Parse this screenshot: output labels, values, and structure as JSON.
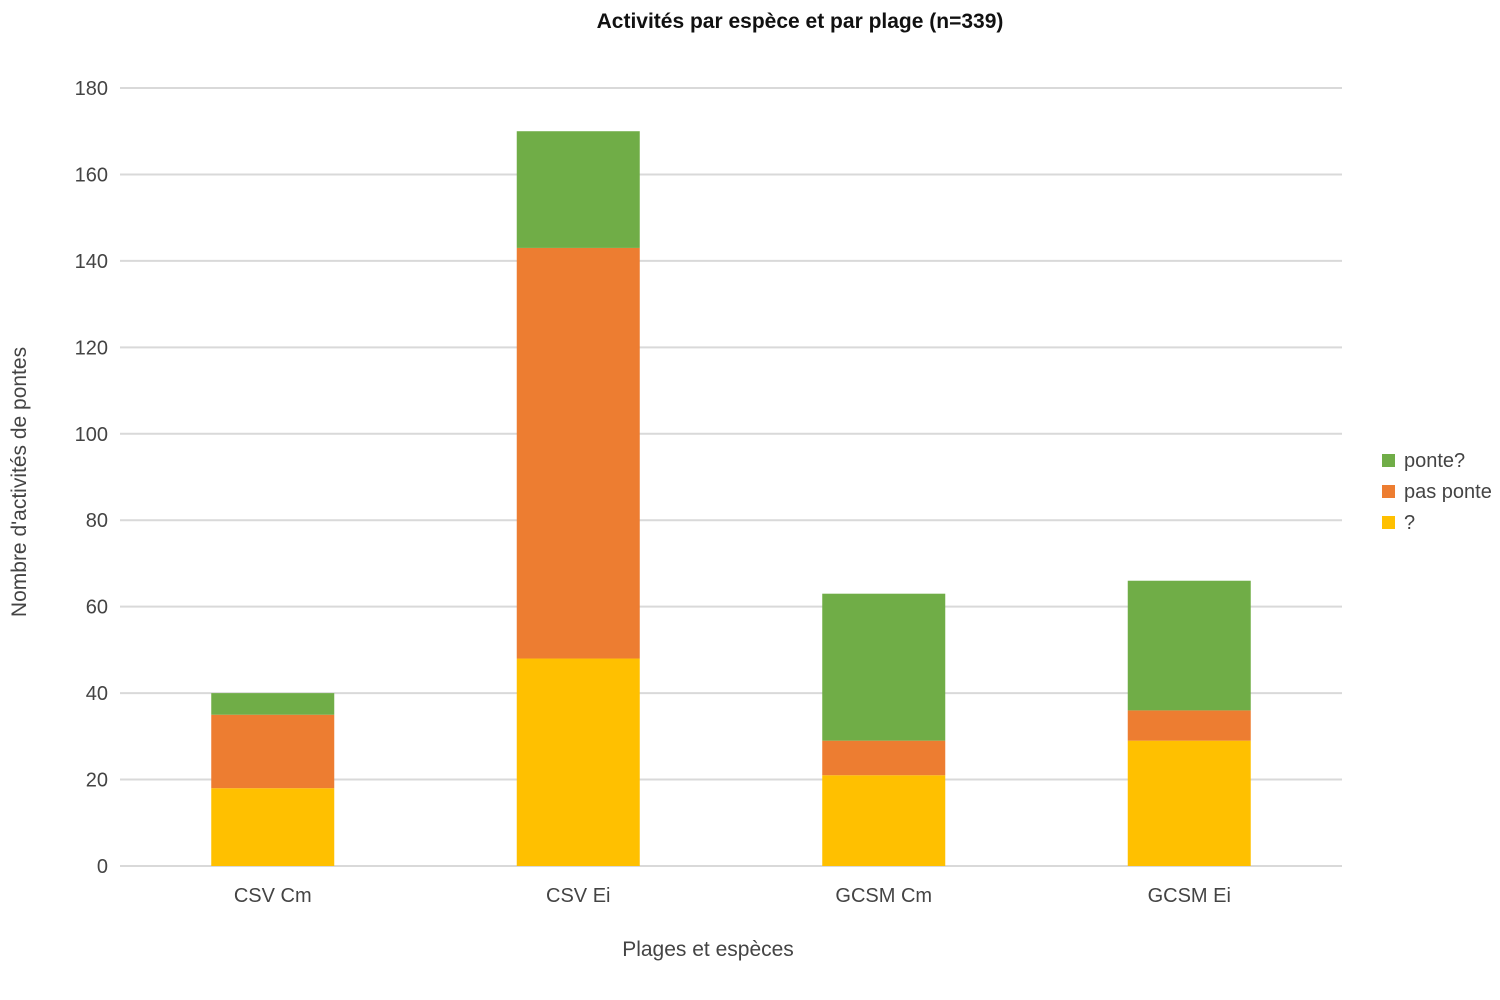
{
  "chart_data": {
    "type": "bar",
    "stacked": true,
    "title": "Activités par espèce et par plage (n=339)",
    "xlabel": "Plages et espèces",
    "ylabel": "Nombre d'activités de pontes",
    "categories": [
      "CSV Cm",
      "CSV Ei",
      "GCSM Cm",
      "GCSM Ei"
    ],
    "series": [
      {
        "name": "?",
        "color": "#ffc000",
        "values": [
          18,
          48,
          21,
          29
        ]
      },
      {
        "name": "pas ponte",
        "color": "#ed7d31",
        "values": [
          17,
          95,
          8,
          7
        ]
      },
      {
        "name": "ponte?",
        "color": "#70ad47",
        "values": [
          5,
          27,
          34,
          30
        ]
      }
    ],
    "ylim": [
      0,
      180
    ],
    "yticks": [
      0,
      20,
      40,
      60,
      80,
      100,
      120,
      140,
      160,
      180
    ],
    "grid": true,
    "legend_position": "right"
  }
}
